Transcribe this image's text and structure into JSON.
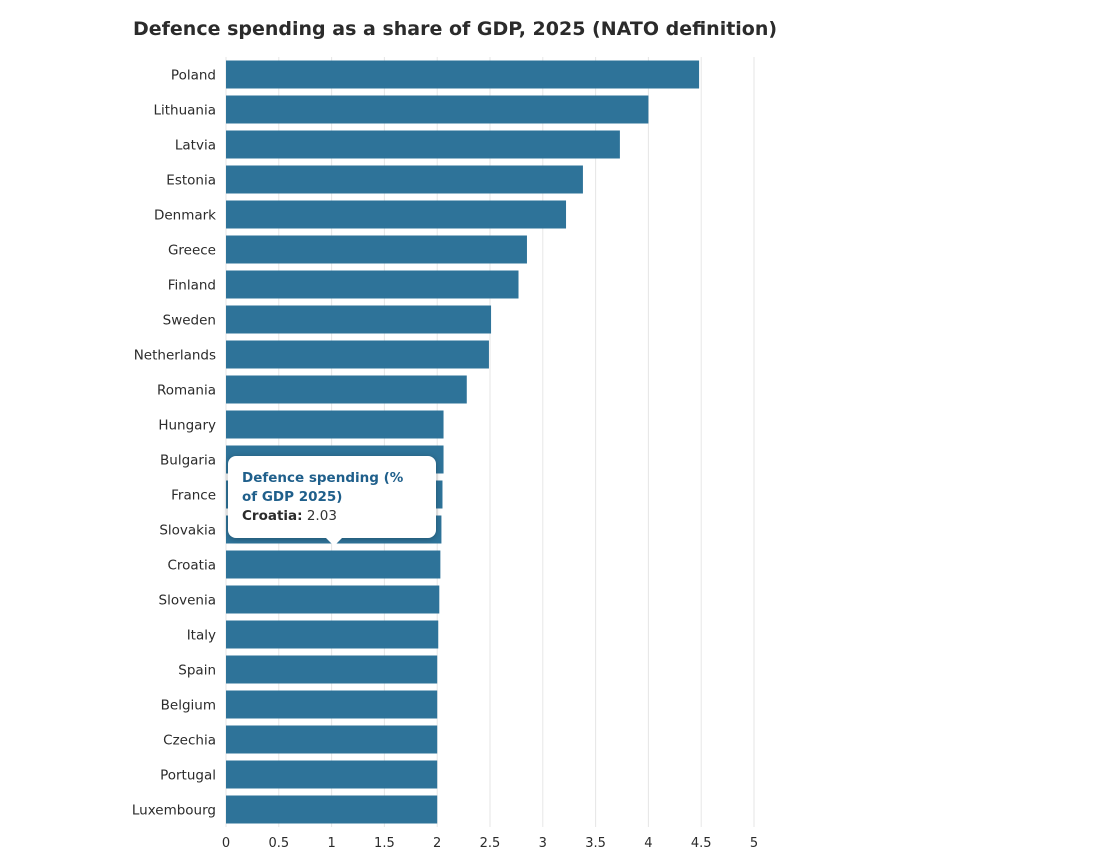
{
  "chart_data": {
    "type": "bar",
    "orientation": "horizontal",
    "title": "Defence spending as a share of GDP, 2025 (NATO definition)",
    "categories": [
      "Poland",
      "Lithuania",
      "Latvia",
      "Estonia",
      "Denmark",
      "Greece",
      "Finland",
      "Sweden",
      "Netherlands",
      "Romania",
      "Hungary",
      "Bulgaria",
      "France",
      "Slovakia",
      "Croatia",
      "Slovenia",
      "Italy",
      "Spain",
      "Belgium",
      "Czechia",
      "Portugal",
      "Luxembourg"
    ],
    "values": [
      4.48,
      4.0,
      3.73,
      3.38,
      3.22,
      2.85,
      2.77,
      2.51,
      2.49,
      2.28,
      2.06,
      2.06,
      2.05,
      2.04,
      2.03,
      2.02,
      2.01,
      2.0,
      2.0,
      2.0,
      2.0,
      2.0
    ],
    "xlim": [
      0,
      5
    ],
    "xticks": [
      "0",
      "0.5",
      "1",
      "1.5",
      "2",
      "2.5",
      "3",
      "3.5",
      "4",
      "4.5",
      "5"
    ],
    "grid": true,
    "bar_color": "#2e7399",
    "xlabel": "",
    "ylabel": ""
  },
  "tooltip": {
    "title": "Defence spending (% of GDP 2025)",
    "key": "Croatia:",
    "value": "2.03"
  },
  "colors": {
    "gridline": "#e6e6e6",
    "tooltip_title": "#1f5f8b"
  }
}
